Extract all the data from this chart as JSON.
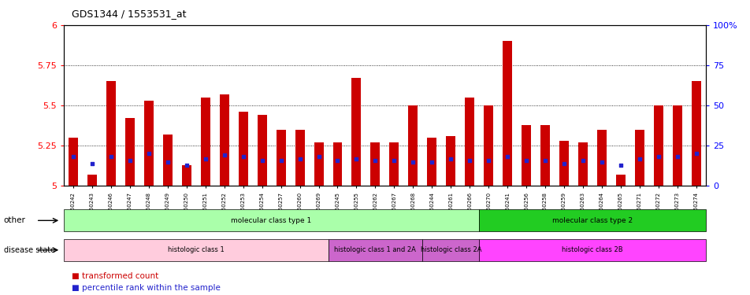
{
  "title": "GDS1344 / 1553531_at",
  "samples": [
    "GSM60242",
    "GSM60243",
    "GSM60246",
    "GSM60247",
    "GSM60248",
    "GSM60249",
    "GSM60250",
    "GSM60251",
    "GSM60252",
    "GSM60253",
    "GSM60254",
    "GSM60257",
    "GSM60260",
    "GSM60269",
    "GSM60245",
    "GSM60255",
    "GSM60262",
    "GSM60267",
    "GSM60268",
    "GSM60244",
    "GSM60261",
    "GSM60266",
    "GSM60270",
    "GSM60241",
    "GSM60256",
    "GSM60258",
    "GSM60259",
    "GSM60263",
    "GSM60264",
    "GSM60265",
    "GSM60271",
    "GSM60272",
    "GSM60273",
    "GSM60274"
  ],
  "transformed_count": [
    5.3,
    5.07,
    5.65,
    5.42,
    5.53,
    5.32,
    5.13,
    5.55,
    5.57,
    5.46,
    5.44,
    5.35,
    5.35,
    5.27,
    5.27,
    5.67,
    5.27,
    5.27,
    5.5,
    5.3,
    5.31,
    5.55,
    5.5,
    5.9,
    5.38,
    5.38,
    5.28,
    5.27,
    5.35,
    5.07,
    5.35,
    5.5,
    5.5,
    5.65
  ],
  "percentile_rank": [
    18,
    14,
    18,
    16,
    20,
    15,
    13,
    17,
    19,
    18,
    16,
    16,
    17,
    18,
    16,
    17,
    16,
    16,
    15,
    15,
    17,
    16,
    16,
    18,
    16,
    16,
    14,
    16,
    15,
    13,
    17,
    18,
    18,
    20
  ],
  "ylim_left": [
    5.0,
    6.0
  ],
  "ylim_right": [
    0,
    100
  ],
  "yticks_left": [
    5.0,
    5.25,
    5.5,
    5.75,
    6.0
  ],
  "yticks_right": [
    0,
    25,
    50,
    75,
    100
  ],
  "ytick_labels_left": [
    "5",
    "5.25",
    "5.5",
    "5.75",
    "6"
  ],
  "ytick_labels_right": [
    "0",
    "25",
    "50",
    "75",
    "100%"
  ],
  "bar_color": "#cc0000",
  "dot_color": "#2222cc",
  "annotation_rows": [
    {
      "label": "other",
      "segments": [
        {
          "text": "molecular class type 1",
          "start": 0,
          "end": 22,
          "color": "#aaffaa"
        },
        {
          "text": "molecular class type 2",
          "start": 22,
          "end": 34,
          "color": "#22cc22"
        }
      ]
    },
    {
      "label": "disease state",
      "segments": [
        {
          "text": "histologic class 1",
          "start": 0,
          "end": 14,
          "color": "#ffccdd"
        },
        {
          "text": "histologic class 1 and 2A",
          "start": 14,
          "end": 19,
          "color": "#cc66cc"
        },
        {
          "text": "histologic class 2A",
          "start": 19,
          "end": 22,
          "color": "#cc66cc"
        },
        {
          "text": "histologic class 2B",
          "start": 22,
          "end": 34,
          "color": "#ff44ff"
        }
      ]
    }
  ]
}
